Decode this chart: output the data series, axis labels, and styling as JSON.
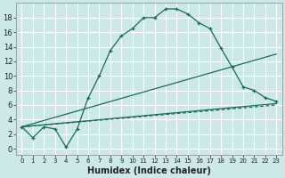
{
  "xlabel": "Humidex (Indice chaleur)",
  "background_color": "#cce8e8",
  "grid_color": "#ffffff",
  "line_color": "#1a6b5a",
  "xlim": [
    -0.5,
    23.5
  ],
  "ylim": [
    -0.8,
    20
  ],
  "xticks": [
    0,
    1,
    2,
    3,
    4,
    5,
    6,
    7,
    8,
    9,
    10,
    11,
    12,
    13,
    14,
    15,
    16,
    17,
    18,
    19,
    20,
    21,
    22,
    23
  ],
  "yticks": [
    0,
    2,
    4,
    6,
    8,
    10,
    12,
    14,
    16,
    18
  ],
  "line1_x": [
    0,
    1,
    2,
    3,
    4,
    5,
    6,
    7,
    8,
    9,
    10,
    11,
    12,
    13,
    14,
    15,
    16,
    17,
    18,
    19,
    20,
    21,
    22,
    23
  ],
  "line1_y": [
    3.0,
    1.5,
    3.0,
    2.7,
    0.2,
    2.7,
    7.0,
    10.0,
    13.5,
    15.5,
    16.5,
    18.0,
    18.0,
    19.2,
    19.2,
    18.5,
    17.3,
    16.5,
    13.8,
    11.2,
    8.5,
    8.0,
    7.0,
    6.5
  ],
  "line2_x": [
    0,
    23
  ],
  "line2_y": [
    3.0,
    13.0
  ],
  "line3_x": [
    0,
    23
  ],
  "line3_y": [
    3.0,
    6.2
  ],
  "line4_x": [
    0,
    23
  ],
  "line4_y": [
    3.0,
    6.0
  ],
  "xlabel_fontsize": 7,
  "tick_fontsize_x": 5,
  "tick_fontsize_y": 6
}
